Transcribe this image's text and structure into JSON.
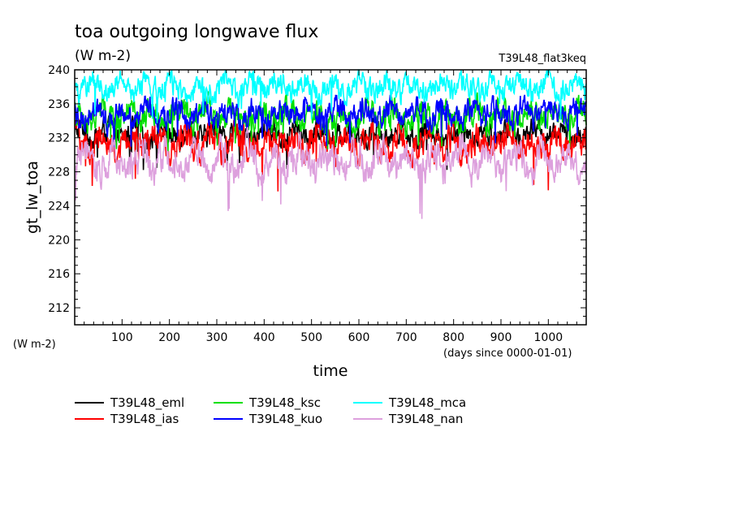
{
  "chart_data": {
    "type": "line",
    "title": "toa outgoing longwave flux",
    "units": "(W m-2)",
    "experiment": "T39L48_flat3keq",
    "xlabel": "time",
    "x_units": "(days since 0000-01-01)",
    "ylabel": "gt_lw_toa",
    "y_units_left": "(W m-2)",
    "xlim": [
      0,
      1080
    ],
    "ylim": [
      210,
      240
    ],
    "xticks": [
      100,
      200,
      300,
      400,
      500,
      600,
      700,
      800,
      900,
      1000
    ],
    "yticks": [
      212,
      216,
      220,
      224,
      228,
      232,
      236,
      240
    ],
    "grid": false,
    "legend_position": "bottom-left",
    "series": [
      {
        "name": "T39L48_eml",
        "color": "#000000",
        "mean": 232.5,
        "amp": 1.3
      },
      {
        "name": "T39L48_ias",
        "color": "#ff0000",
        "mean": 231.4,
        "amp": 1.7
      },
      {
        "name": "T39L48_ksc",
        "color": "#00e000",
        "mean": 234.6,
        "amp": 1.5
      },
      {
        "name": "T39L48_kuo",
        "color": "#0000ff",
        "mean": 234.9,
        "amp": 1.4
      },
      {
        "name": "T39L48_mca",
        "color": "#00ffff",
        "mean": 237.9,
        "amp": 1.3
      },
      {
        "name": "T39L48_nan",
        "color": "#dda0dd",
        "mean": 229.3,
        "amp": 1.8
      }
    ]
  }
}
